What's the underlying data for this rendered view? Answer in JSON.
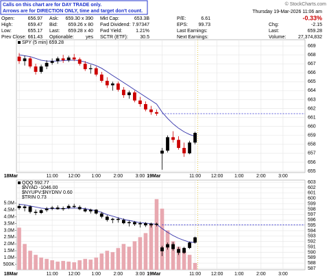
{
  "header": {
    "notice": [
      "Calls on this chart are for DAY TRADE only.",
      "Arrows are for DIRECTION ONLY, time and target don't count."
    ],
    "copyright": "© StockCharts.com",
    "datetime": "Thursday 19-Mar-2026 11:06 am",
    "change_pct": "-0.33%",
    "stats": [
      [
        [
          "Open:",
          "656.97"
        ],
        [
          "High:",
          "659.47"
        ],
        [
          "Low:",
          "655.17"
        ],
        [
          "Prev Close:",
          "661.43"
        ]
      ],
      [
        [
          "Ask:",
          "659.30 x 390"
        ],
        [
          "Bid:",
          "659.26 x 80"
        ],
        [
          "Last:",
          "659.28 x 40"
        ],
        [
          "Optionable:",
          "yes"
        ]
      ],
      [
        [
          "Mkt Cap:",
          "653.3B"
        ],
        [
          "Fwd Dividend:",
          "7.97347"
        ],
        [
          "Fwd Yield:",
          "1.21%"
        ],
        [
          "SCTR (ETF):",
          "30.5"
        ]
      ],
      [
        [
          "P/E:",
          "6.61"
        ],
        [
          "EPS:",
          "99.73"
        ],
        [
          "Last Earnings:"
        ],
        [
          "Next Earnings:"
        ]
      ],
      [
        [
          "Chg:",
          "-2.15"
        ],
        [
          "Last:",
          "659.28"
        ],
        [
          "Volume:",
          "27,374,832"
        ]
      ]
    ]
  },
  "chart_data": [
    {
      "type": "candlestick",
      "legend": [
        "SPY (5 min) 659.28"
      ],
      "up_color": "#000000",
      "down_color": "#cc0000",
      "ma_color": "#3333aa",
      "ref_color": "#2222cc",
      "xlim": [
        -0.5,
        52
      ],
      "xticks": [
        {
          "value": 0,
          "label": "18Mar"
        },
        {
          "value": 6,
          "label": "11:00"
        },
        {
          "value": 10,
          "label": "12:00"
        },
        {
          "value": 14,
          "label": "1:00"
        },
        {
          "value": 18,
          "label": "2:00"
        },
        {
          "value": 22,
          "label": "3:00"
        },
        {
          "value": 26,
          "label": "19Mar"
        },
        {
          "value": 32,
          "label": "11:00"
        },
        {
          "value": 36,
          "label": "12:00"
        },
        {
          "value": 40,
          "label": "1:00"
        },
        {
          "value": 44,
          "label": "2:00"
        },
        {
          "value": 48,
          "label": "3:00"
        }
      ],
      "ylim": [
        654.85,
        669.69
      ],
      "yticks": [
        655,
        656,
        657,
        658,
        659,
        660,
        661,
        662,
        663,
        664,
        665,
        666,
        667,
        668,
        669
      ],
      "open": [
        667.8,
        667.3,
        667.6,
        666.7,
        666.1,
        666.7,
        667.1,
        667.3,
        667.6,
        667.4,
        667.7,
        667.5,
        667.0,
        666.4,
        666.5,
        665.8,
        665.1,
        664.6,
        664.8,
        664.1,
        663.5,
        663.8,
        662.9,
        662.5,
        661.9,
        661.6,
        656.97,
        657.3,
        658.8,
        658.5,
        657.6,
        657.0,
        658.2
      ],
      "high": [
        668.2,
        667.9,
        667.8,
        667.0,
        666.9,
        667.4,
        667.6,
        667.8,
        668.0,
        667.9,
        668.1,
        667.7,
        667.3,
        666.9,
        666.7,
        666.1,
        665.5,
        665.0,
        665.0,
        664.4,
        664.0,
        664.0,
        663.3,
        662.8,
        662.3,
        661.9,
        657.6,
        659.0,
        659.47,
        658.9,
        658.2,
        658.4,
        659.4
      ],
      "low": [
        667.0,
        666.8,
        666.5,
        665.8,
        665.9,
        666.4,
        666.9,
        667.0,
        667.1,
        667.2,
        667.3,
        666.8,
        666.2,
        665.9,
        665.6,
        664.9,
        664.3,
        664.0,
        663.9,
        663.2,
        663.1,
        662.7,
        662.2,
        661.7,
        661.3,
        661.2,
        655.17,
        657.1,
        658.2,
        657.4,
        656.6,
        656.9,
        658.0
      ],
      "close": [
        667.3,
        667.6,
        666.7,
        666.1,
        666.7,
        667.1,
        667.3,
        667.6,
        667.4,
        667.7,
        667.5,
        667.0,
        666.4,
        666.5,
        665.8,
        665.1,
        664.6,
        664.8,
        664.1,
        663.5,
        663.8,
        662.9,
        662.5,
        661.9,
        661.6,
        661.43,
        657.3,
        658.8,
        658.5,
        657.6,
        657.0,
        658.2,
        659.28
      ],
      "ma": [
        668.0,
        667.9,
        667.8,
        667.6,
        667.4,
        667.3,
        667.3,
        667.3,
        667.35,
        667.4,
        667.4,
        667.35,
        667.2,
        667.0,
        666.8,
        666.5,
        666.1,
        665.7,
        665.3,
        664.9,
        664.5,
        664.1,
        663.7,
        663.3,
        662.9,
        662.5,
        661.6,
        660.9,
        660.3,
        659.8,
        659.4,
        659.1,
        658.9
      ]
    },
    {
      "type": "candlestick",
      "legend": [
        "QQQ 592.77",
        "$NYAD -1046.00",
        "$NYUPV:$NYDNV 0.60",
        "$TRIN 0.73"
      ],
      "up_color": "#000000",
      "down_color": "#000000",
      "ma_color": "#3333aa",
      "ref_color": "#2222cc",
      "volume_color": "#e8a8b0",
      "prev_close": 595.1,
      "xlim": [
        -0.5,
        52
      ],
      "xticks": [
        {
          "value": 0,
          "label": "18Mar"
        },
        {
          "value": 6,
          "label": "11:00"
        },
        {
          "value": 10,
          "label": "12:00"
        },
        {
          "value": 14,
          "label": "1:00"
        },
        {
          "value": 18,
          "label": "2:00"
        },
        {
          "value": 22,
          "label": "3:00"
        },
        {
          "value": 26,
          "label": "19Mar"
        },
        {
          "value": 32,
          "label": "11:00"
        },
        {
          "value": 36,
          "label": "12:00"
        },
        {
          "value": 40,
          "label": "1:00"
        },
        {
          "value": 44,
          "label": "2:00"
        },
        {
          "value": 48,
          "label": "3:00"
        }
      ],
      "ylim": [
        586.75,
        603.4
      ],
      "yticks": [
        587,
        588,
        589,
        590,
        591,
        592,
        593,
        594,
        595,
        596,
        597,
        598,
        599,
        600,
        601,
        602,
        603
      ],
      "y2lim": [
        100000,
        6700000
      ],
      "y2ticks": [
        {
          "value": 500000,
          "label": "500K"
        },
        {
          "value": 1000000,
          "label": "1.0M"
        },
        {
          "value": 1500000,
          "label": "1.5M"
        },
        {
          "value": 2000000,
          "label": "2.0M"
        },
        {
          "value": 2500000,
          "label": "2.5M"
        },
        {
          "value": 3000000,
          "label": "3.0M"
        },
        {
          "value": 3500000,
          "label": "3.5M"
        },
        {
          "value": 4000000,
          "label": "4.0M"
        },
        {
          "value": 4500000,
          "label": "4.5M"
        },
        {
          "value": 5000000,
          "label": "5.0M"
        }
      ],
      "open": [
        598.6,
        598.2,
        598.5,
        597.5,
        597.3,
        597.8,
        598.1,
        598.3,
        598.0,
        598.2,
        598.6,
        598.4,
        598.0,
        597.6,
        597.9,
        597.2,
        596.6,
        596.0,
        596.2,
        596.0,
        595.4,
        595.6,
        595.2,
        595.4,
        595.0,
        595.3,
        590.2,
        590.9,
        591.5,
        590.6,
        589.9,
        590.8,
        591.8
      ],
      "high": [
        599.0,
        598.8,
        598.7,
        597.9,
        598.0,
        598.4,
        598.6,
        598.7,
        598.5,
        598.9,
        599.0,
        598.7,
        598.3,
        598.1,
        598.0,
        597.5,
        596.9,
        596.4,
        596.5,
        596.3,
        595.9,
        595.8,
        595.7,
        595.6,
        595.5,
        595.5,
        591.2,
        591.8,
        591.9,
        591.0,
        591.0,
        592.0,
        592.9
      ],
      "low": [
        597.9,
        597.6,
        597.2,
        596.9,
        597.1,
        597.5,
        597.8,
        597.9,
        597.7,
        598.0,
        598.2,
        597.8,
        597.4,
        597.2,
        597.0,
        596.3,
        595.7,
        595.4,
        595.5,
        595.2,
        594.8,
        594.9,
        594.6,
        594.7,
        594.6,
        594.8,
        589.3,
        590.5,
        590.3,
        589.5,
        589.7,
        590.6,
        591.6
      ],
      "close": [
        598.2,
        598.5,
        597.5,
        597.3,
        597.8,
        598.1,
        598.3,
        598.0,
        598.2,
        598.6,
        598.4,
        598.0,
        597.6,
        597.9,
        597.2,
        596.6,
        596.0,
        596.2,
        596.0,
        595.4,
        595.6,
        595.2,
        595.4,
        595.0,
        595.3,
        595.1,
        590.9,
        591.5,
        590.6,
        589.9,
        590.8,
        591.8,
        592.77
      ],
      "ma": [
        598.9,
        598.8,
        598.6,
        598.4,
        598.2,
        598.1,
        598.1,
        598.1,
        598.1,
        598.2,
        598.2,
        598.2,
        598.1,
        597.9,
        597.7,
        597.4,
        597.0,
        596.7,
        596.4,
        596.1,
        595.9,
        595.7,
        595.5,
        595.4,
        595.3,
        595.2,
        594.4,
        593.7,
        593.1,
        592.6,
        592.2,
        591.9,
        591.8
      ],
      "volume": [
        3200000,
        2000000,
        1500000,
        1200000,
        1000000,
        900000,
        800000,
        700000,
        750000,
        700000,
        650000,
        800000,
        900000,
        850000,
        1000000,
        1300000,
        1500000,
        1400000,
        1700000,
        2000000,
        1800000,
        2200000,
        2500000,
        2800000,
        3500000,
        5300000,
        4600000,
        3000000,
        2200000,
        1800000,
        1500000,
        1200000,
        600000
      ]
    }
  ]
}
